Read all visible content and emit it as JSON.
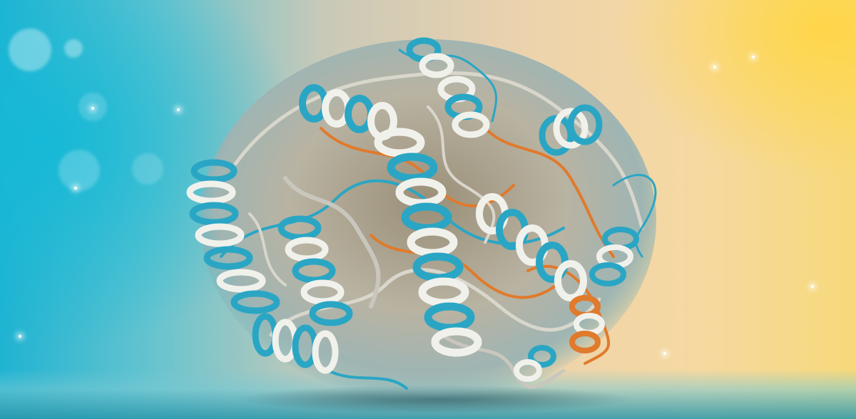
{
  "scene": {
    "subject": "protein-structure",
    "colors": {
      "helix_blue": "#2aa6c4",
      "helix_white": "#f1f1ec",
      "coil_orange": "#e07a2c",
      "coil_gray": "#c9c7bd",
      "bg_teal": "#1fb3d2",
      "bg_yellow": "#f7d97a"
    }
  }
}
